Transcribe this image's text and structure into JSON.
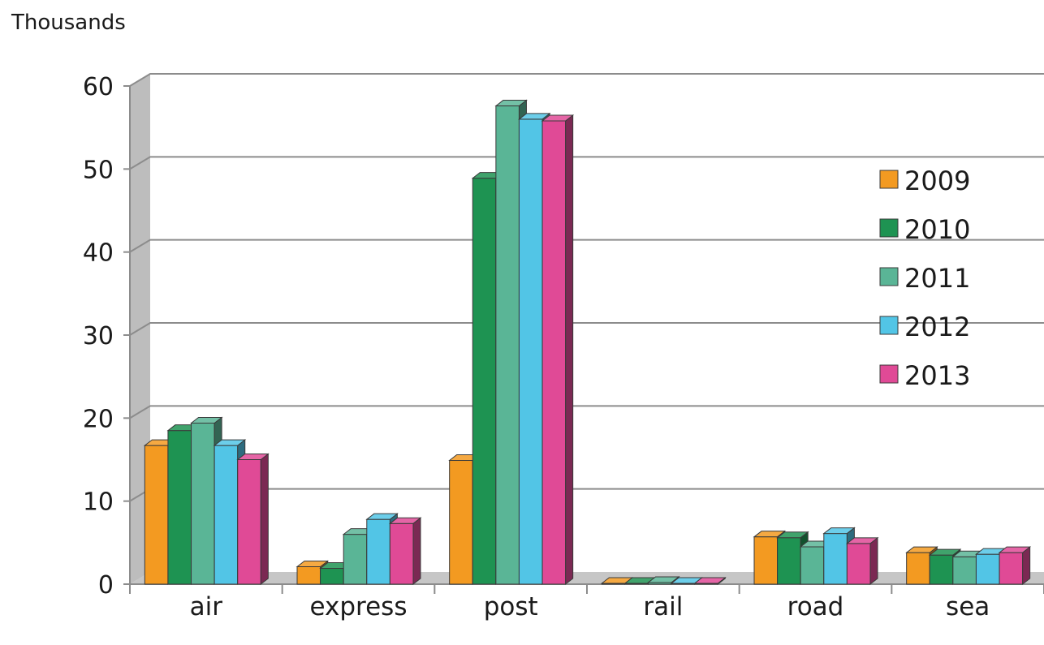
{
  "chart_data": {
    "type": "bar",
    "title": "",
    "ylabel": "Thousands",
    "xlabel": "",
    "categories": [
      "air",
      "express",
      "post",
      "rail",
      "road",
      "sea"
    ],
    "ylim": [
      0,
      60
    ],
    "yticks": [
      0,
      10,
      20,
      30,
      40,
      50,
      60
    ],
    "grid": true,
    "legend_position": "right",
    "series": [
      {
        "name": "2009",
        "color": "#f39a21",
        "values": [
          16.7,
          2.1,
          14.9,
          0.1,
          5.7,
          3.8
        ]
      },
      {
        "name": "2010",
        "color": "#1e9352",
        "values": [
          18.5,
          1.9,
          48.9,
          0.1,
          5.6,
          3.5
        ]
      },
      {
        "name": "2011",
        "color": "#5ab596",
        "values": [
          19.4,
          6.0,
          57.6,
          0.2,
          4.5,
          3.3
        ]
      },
      {
        "name": "2012",
        "color": "#52c5e6",
        "values": [
          16.7,
          7.8,
          56.0,
          0.1,
          6.1,
          3.6
        ]
      },
      {
        "name": "2013",
        "color": "#e04a96",
        "values": [
          15.0,
          7.3,
          55.8,
          0.1,
          4.9,
          3.8
        ]
      }
    ]
  }
}
